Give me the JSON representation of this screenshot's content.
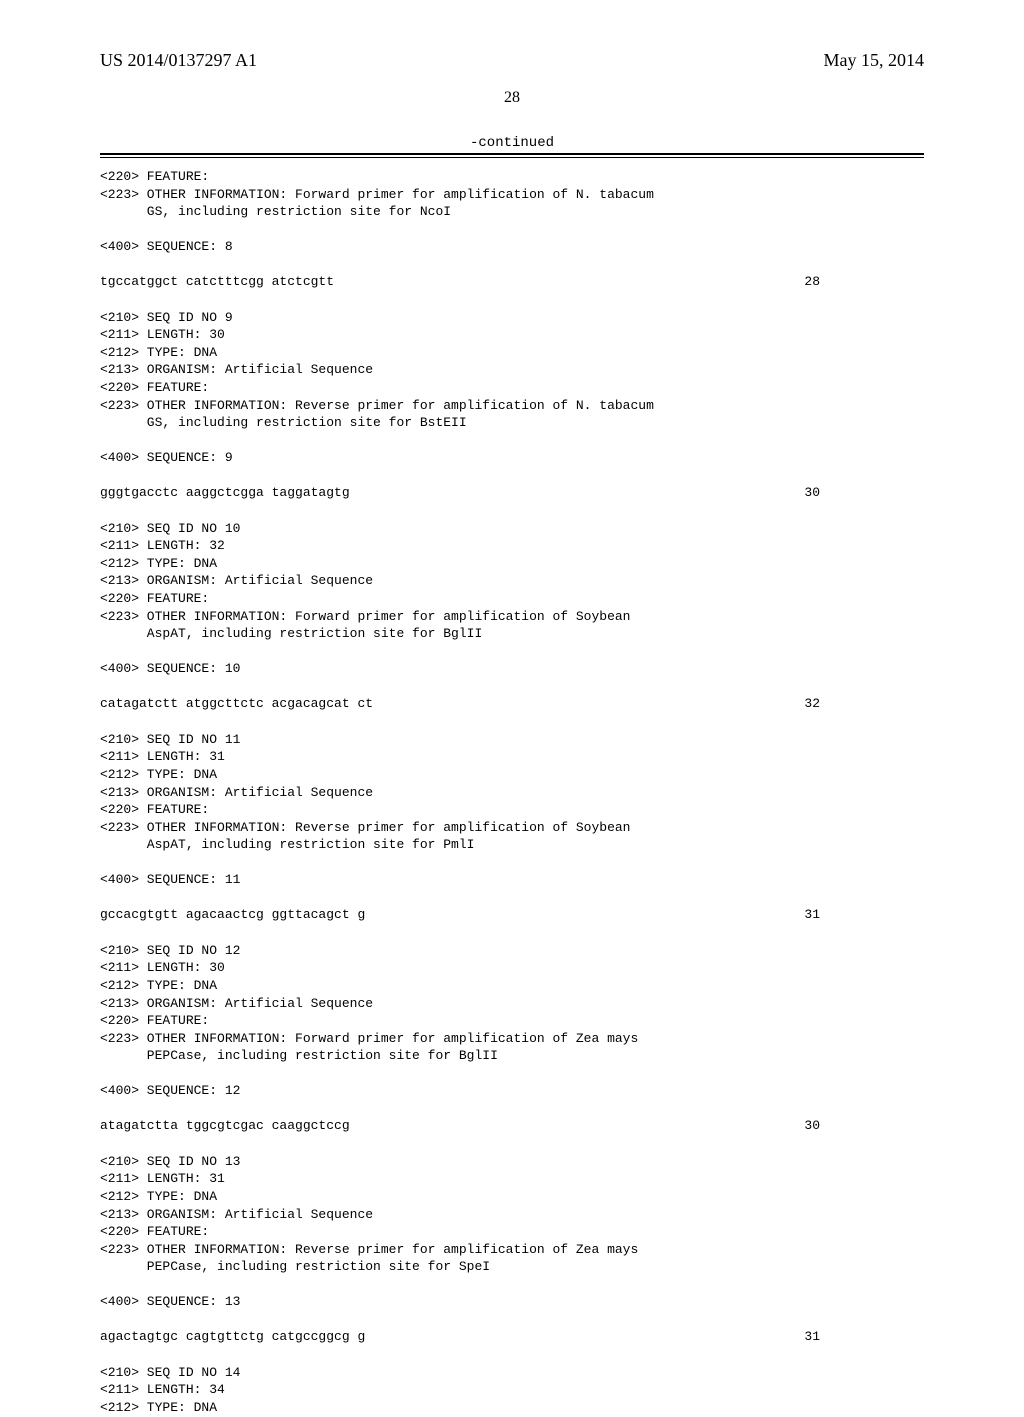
{
  "header": {
    "pub_number": "US 2014/0137297 A1",
    "pub_date": "May 15, 2014"
  },
  "page_number": "28",
  "continued_label": "-continued",
  "blocks": [
    {
      "lines": [
        "<220> FEATURE:",
        "<223> OTHER INFORMATION: Forward primer for amplification of N. tabacum",
        "      GS, including restriction site for NcoI",
        "",
        "<400> SEQUENCE: 8"
      ],
      "seq": "tgccatggct catctttcgg atctcgtt",
      "len": "28"
    },
    {
      "lines": [
        "<210> SEQ ID NO 9",
        "<211> LENGTH: 30",
        "<212> TYPE: DNA",
        "<213> ORGANISM: Artificial Sequence",
        "<220> FEATURE:",
        "<223> OTHER INFORMATION: Reverse primer for amplification of N. tabacum",
        "      GS, including restriction site for BstEII",
        "",
        "<400> SEQUENCE: 9"
      ],
      "seq": "gggtgacctc aaggctcgga taggatagtg",
      "len": "30"
    },
    {
      "lines": [
        "<210> SEQ ID NO 10",
        "<211> LENGTH: 32",
        "<212> TYPE: DNA",
        "<213> ORGANISM: Artificial Sequence",
        "<220> FEATURE:",
        "<223> OTHER INFORMATION: Forward primer for amplification of Soybean",
        "      AspAT, including restriction site for BglII",
        "",
        "<400> SEQUENCE: 10"
      ],
      "seq": "catagatctt atggcttctc acgacagcat ct",
      "len": "32"
    },
    {
      "lines": [
        "<210> SEQ ID NO 11",
        "<211> LENGTH: 31",
        "<212> TYPE: DNA",
        "<213> ORGANISM: Artificial Sequence",
        "<220> FEATURE:",
        "<223> OTHER INFORMATION: Reverse primer for amplification of Soybean",
        "      AspAT, including restriction site for PmlI",
        "",
        "<400> SEQUENCE: 11"
      ],
      "seq": "gccacgtgtt agacaactcg ggttacagct g",
      "len": "31"
    },
    {
      "lines": [
        "<210> SEQ ID NO 12",
        "<211> LENGTH: 30",
        "<212> TYPE: DNA",
        "<213> ORGANISM: Artificial Sequence",
        "<220> FEATURE:",
        "<223> OTHER INFORMATION: Forward primer for amplification of Zea mays",
        "      PEPCase, including restriction site for BglII",
        "",
        "<400> SEQUENCE: 12"
      ],
      "seq": "atagatctta tggcgtcgac caaggctccg",
      "len": "30"
    },
    {
      "lines": [
        "<210> SEQ ID NO 13",
        "<211> LENGTH: 31",
        "<212> TYPE: DNA",
        "<213> ORGANISM: Artificial Sequence",
        "<220> FEATURE:",
        "<223> OTHER INFORMATION: Reverse primer for amplification of Zea mays",
        "      PEPCase, including restriction site for SpeI",
        "",
        "<400> SEQUENCE: 13"
      ],
      "seq": "agactagtgc cagtgttctg catgccggcg g",
      "len": "31"
    },
    {
      "lines": [
        "<210> SEQ ID NO 14",
        "<211> LENGTH: 34",
        "<212> TYPE: DNA"
      ],
      "seq": null,
      "len": null
    }
  ]
}
